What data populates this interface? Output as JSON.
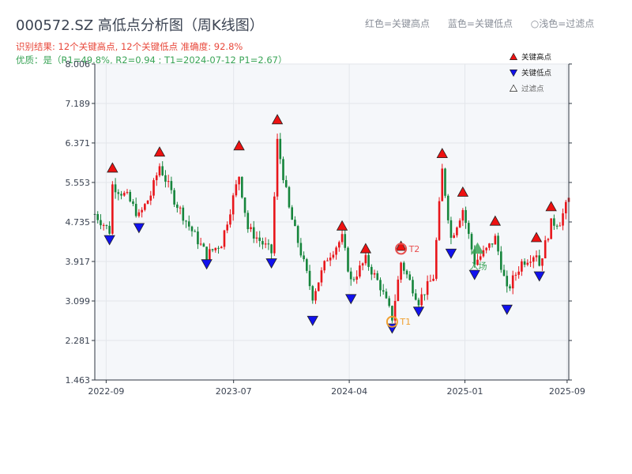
{
  "header": {
    "title": "000572.SZ 高低点分析图（周K线图）",
    "result": "识别结果: 12个关键高点, 12个关键低点  准确度: 92.8%",
    "quality": "优质：是（R1=49.8%, R2=0.94 ; T1=2024-07-12 P1=2.67）"
  },
  "top_legend": {
    "red": "红色=关键高点",
    "blue": "蓝色=关键低点",
    "hollow": "○浅色=过滤点"
  },
  "colors": {
    "up": "#e8161b",
    "down": "#16853c",
    "high_marker": "#ee1111",
    "low_marker": "#1111ee",
    "t1": "#f0a030",
    "t2": "#e85050",
    "entry": "#3aa457",
    "plot_bg": "#f5f7fa",
    "grid": "#e3e6eb",
    "axis": "#2d3640"
  },
  "chart_data": {
    "type": "candlestick",
    "title": "000572.SZ 高低点分析图（周K线图）",
    "ylim": [
      1.463,
      8.006
    ],
    "yticks": [
      "1.463",
      "2.281",
      "3.099",
      "3.917",
      "4.735",
      "5.553",
      "6.371",
      "7.189",
      "8.006"
    ],
    "xlim": [
      "2022-08-05",
      "2025-09-05"
    ],
    "xticks": [
      "2022-09",
      "2023-07",
      "2024-04",
      "2025-01",
      "2025-09"
    ],
    "legend": [
      {
        "label": "关键高点",
        "marker": "triangle-up",
        "color": "#ee1111"
      },
      {
        "label": "关键低点",
        "marker": "triangle-down",
        "color": "#1111ee"
      },
      {
        "label": "过滤点",
        "marker": "triangle-up-hollow",
        "color": "#ffffff"
      }
    ],
    "grid": true,
    "legend_position": "top-right",
    "annotations": [
      {
        "label": "T1",
        "date": "2024-07-12",
        "price": 2.67,
        "color": "#f0a030"
      },
      {
        "label": "T2",
        "date": "2024-08-02",
        "price": 4.18,
        "color": "#e85050"
      },
      {
        "label": "入场",
        "date": "2025-01-31",
        "price": 4.15,
        "color": "#3aa457"
      }
    ],
    "key_highs": [
      {
        "date": "2022-09-16",
        "price": 5.72
      },
      {
        "date": "2023-01-06",
        "price": 6.05
      },
      {
        "date": "2023-07-14",
        "price": 6.18
      },
      {
        "date": "2023-10-13",
        "price": 6.72
      },
      {
        "date": "2024-03-15",
        "price": 4.52
      },
      {
        "date": "2024-05-10",
        "price": 4.05
      },
      {
        "date": "2024-08-02",
        "price": 4.1
      },
      {
        "date": "2024-11-08",
        "price": 6.02
      },
      {
        "date": "2024-12-27",
        "price": 5.22
      },
      {
        "date": "2025-03-14",
        "price": 4.62
      },
      {
        "date": "2025-06-20",
        "price": 4.28
      },
      {
        "date": "2025-07-25",
        "price": 4.92
      }
    ],
    "key_lows": [
      {
        "date": "2022-09-09",
        "price": 4.5
      },
      {
        "date": "2022-11-18",
        "price": 4.75
      },
      {
        "date": "2023-04-28",
        "price": 4.0
      },
      {
        "date": "2023-09-29",
        "price": 4.02
      },
      {
        "date": "2024-01-05",
        "price": 2.83
      },
      {
        "date": "2024-04-05",
        "price": 3.28
      },
      {
        "date": "2024-07-12",
        "price": 2.67
      },
      {
        "date": "2024-09-13",
        "price": 3.02
      },
      {
        "date": "2024-11-29",
        "price": 4.22
      },
      {
        "date": "2025-01-24",
        "price": 3.78
      },
      {
        "date": "2025-04-11",
        "price": 3.06
      },
      {
        "date": "2025-06-27",
        "price": 3.75
      }
    ],
    "weekly_close": [
      {
        "date": "2022-08-05",
        "close": 4.9
      },
      {
        "date": "2022-09-09",
        "close": 4.55
      },
      {
        "date": "2022-09-16",
        "close": 5.5
      },
      {
        "date": "2022-10-21",
        "close": 5.25
      },
      {
        "date": "2022-11-18",
        "close": 4.85
      },
      {
        "date": "2022-12-16",
        "close": 5.3
      },
      {
        "date": "2023-01-06",
        "close": 5.9
      },
      {
        "date": "2023-02-10",
        "close": 5.2
      },
      {
        "date": "2023-03-17",
        "close": 4.65
      },
      {
        "date": "2023-04-28",
        "close": 4.05
      },
      {
        "date": "2023-06-02",
        "close": 4.3
      },
      {
        "date": "2023-07-14",
        "close": 5.7
      },
      {
        "date": "2023-08-04",
        "close": 4.6
      },
      {
        "date": "2023-09-29",
        "close": 4.1
      },
      {
        "date": "2023-10-13",
        "close": 6.4
      },
      {
        "date": "2023-11-10",
        "close": 5.0
      },
      {
        "date": "2023-12-08",
        "close": 4.1
      },
      {
        "date": "2024-01-05",
        "close": 3.2
      },
      {
        "date": "2024-02-09",
        "close": 4.0
      },
      {
        "date": "2024-03-15",
        "close": 4.4
      },
      {
        "date": "2024-04-05",
        "close": 3.5
      },
      {
        "date": "2024-05-10",
        "close": 3.95
      },
      {
        "date": "2024-06-14",
        "close": 3.4
      },
      {
        "date": "2024-07-12",
        "close": 2.75
      },
      {
        "date": "2024-08-02",
        "close": 3.9
      },
      {
        "date": "2024-09-13",
        "close": 3.1
      },
      {
        "date": "2024-10-18",
        "close": 3.6
      },
      {
        "date": "2024-11-08",
        "close": 5.8
      },
      {
        "date": "2024-11-29",
        "close": 4.4
      },
      {
        "date": "2024-12-27",
        "close": 5.0
      },
      {
        "date": "2025-01-24",
        "close": 3.9
      },
      {
        "date": "2025-02-21",
        "close": 4.15
      },
      {
        "date": "2025-03-14",
        "close": 4.4
      },
      {
        "date": "2025-04-11",
        "close": 3.3
      },
      {
        "date": "2025-05-16",
        "close": 3.9
      },
      {
        "date": "2025-06-20",
        "close": 4.1
      },
      {
        "date": "2025-06-27",
        "close": 3.85
      },
      {
        "date": "2025-07-25",
        "close": 4.7
      },
      {
        "date": "2025-08-15",
        "close": 4.75
      },
      {
        "date": "2025-09-05",
        "close": 5.2
      }
    ]
  }
}
